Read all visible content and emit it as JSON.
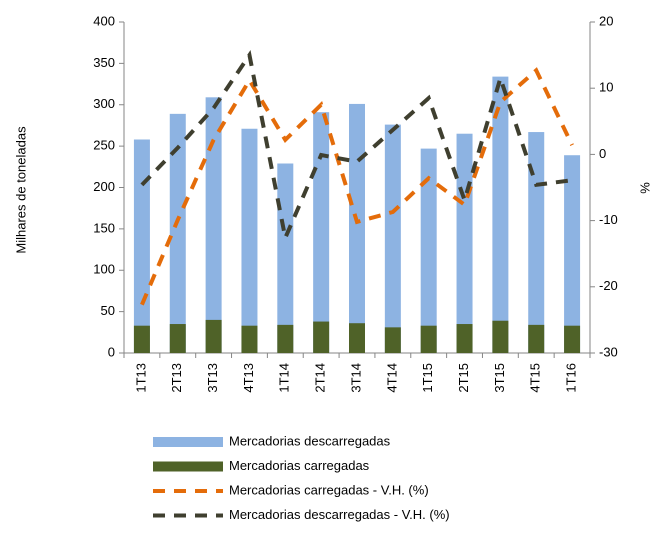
{
  "chart_data": {
    "type": "bar-line",
    "y_label": "Milhares de toneladas",
    "y2_label": "%",
    "categories": [
      "1T13",
      "2T13",
      "3T13",
      "4T13",
      "1T14",
      "2T14",
      "3T14",
      "4T14",
      "1T15",
      "2T15",
      "3T15",
      "4T15",
      "1T16"
    ],
    "series": [
      {
        "name": "Mercadorias descarregadas",
        "kind": "bar",
        "color": "#8db3e2",
        "values": [
          258,
          289,
          309,
          271,
          229,
          291,
          301,
          276,
          247,
          265,
          334,
          267,
          239
        ]
      },
      {
        "name": "Mercadorias carregadas",
        "kind": "bar",
        "color": "#4f6228",
        "values": [
          33,
          35,
          40,
          33,
          34,
          38,
          36,
          31,
          33,
          35,
          39,
          34,
          33
        ]
      },
      {
        "name": "Mercadorias carregadas - V.H. (%)",
        "kind": "line",
        "axis": "y2",
        "color": "#e46c0a",
        "values": [
          -22.7,
          -9.9,
          2.2,
          11.2,
          2.2,
          7.5,
          -10.2,
          -8.7,
          -3.6,
          -7.6,
          7.9,
          12.7,
          1.4
        ]
      },
      {
        "name": "Mercadorias descarregadas - V.H. (%)",
        "kind": "line",
        "axis": "y2",
        "color": "#3f3f2f",
        "values": [
          -4.6,
          1,
          7,
          15,
          -12.6,
          -0.1,
          -1.1,
          3.7,
          8.5,
          -6.9,
          11.5,
          -4.6,
          -3.9
        ]
      }
    ],
    "ylim": [
      0,
      400
    ],
    "yticks": [
      0,
      50,
      100,
      150,
      200,
      250,
      300,
      350,
      400
    ],
    "y2lim": [
      -30,
      20
    ],
    "y2ticks": [
      -30,
      -20,
      -10,
      0,
      10,
      20
    ]
  }
}
